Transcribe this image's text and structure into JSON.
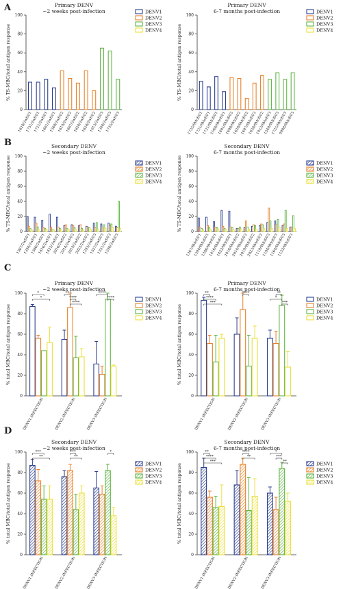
{
  "colors": {
    "DENV1": "#2b3f8f",
    "DENV2": "#e8822a",
    "DENV3": "#5fb544",
    "DENV4": "#ecdf3a"
  },
  "panel_labels": [
    "A",
    "B",
    "C",
    "D"
  ],
  "chart_data": [
    {
      "panel": "A",
      "type": "bar",
      "title": "Primary DENV\n~2 weeks post-infection",
      "ylabel": "% TS-MBC/total antigen response",
      "ylim": [
        0,
        100
      ],
      "yticks": [
        0,
        20,
        40,
        60,
        80,
        100
      ],
      "legend": [
        "DENV1",
        "DENV2",
        "DENV3",
        "DENV4"
      ],
      "categories": [
        "1628/2wDV1",
        "1731/2wDV1",
        "1721/2wDV1",
        "1601/2wDV1",
        "1568/2wDV2",
        "1619/2wDV2",
        "1607/2wDV2",
        "1620/2wDV2",
        "1628/2wDV2",
        "1013/2wDV3",
        "1340/2wDV3",
        "1735/2wDV3"
      ],
      "values": [
        29,
        29,
        32,
        23,
        41,
        33,
        28,
        41,
        20,
        65,
        62,
        32
      ],
      "bar_series": [
        "DENV1",
        "DENV1",
        "DENV1",
        "DENV1",
        "DENV2",
        "DENV2",
        "DENV2",
        "DENV2",
        "DENV2",
        "DENV3",
        "DENV3",
        "DENV3"
      ]
    },
    {
      "panel": "A",
      "type": "bar",
      "title": "Primary DENV\n6-7 months post-infection",
      "ylabel": "% TS-MBC/total antigen response",
      "ylim": [
        0,
        100
      ],
      "yticks": [
        0,
        20,
        40,
        60,
        80,
        100
      ],
      "legend": [
        "DENV1",
        "DENV2",
        "DENV3",
        "DENV4"
      ],
      "categories": [
        "1735/6MoDV1",
        "1731/6MoDV1",
        "1721/6MoDV1",
        "1568/6MoDV1",
        "1601/6MoDV2",
        "1608/6MoDV2",
        "1620/6MoDV2",
        "1607/6MoDV2",
        "1628/6MoDV2",
        "1013/6MoDV3",
        "1340/6MoDV3",
        "1735/6MoDV3",
        "9008/6MoDV3"
      ],
      "values": [
        30,
        24,
        35,
        19,
        34,
        33,
        12,
        28,
        36,
        32,
        39,
        32,
        39
      ],
      "bar_series": [
        "DENV1",
        "DENV1",
        "DENV1",
        "DENV1",
        "DENV2",
        "DENV2",
        "DENV2",
        "DENV2",
        "DENV2",
        "DENV3",
        "DENV3",
        "DENV3",
        "DENV3"
      ]
    },
    {
      "panel": "B",
      "type": "bar",
      "title": "Secondary DENV\n~2 weeks post-infection",
      "ylabel": "% TS-MBC/total antigen response",
      "ylim": [
        0,
        100
      ],
      "yticks": [
        0,
        20,
        40,
        60,
        80,
        100
      ],
      "legend": [
        "DENV1",
        "DENV2",
        "DENV3",
        "DENV4"
      ],
      "legend_pattern": "hatch",
      "categories": [
        "1367/2wDV1",
        "1394/2wDV1",
        "1386/2wDV1",
        "1416/2wDV1",
        "1422/2wDV1",
        "2016/2wDV2",
        "2014/2wDV2",
        "2019/2wDV2",
        "2023/2wDV2",
        "1293/2wDV3",
        "1327/2wDV3",
        "1351/2wDV3",
        "1290/2wDV3"
      ],
      "values": [
        [
          20,
          7,
          4,
          2
        ],
        [
          19,
          11,
          6,
          3
        ],
        [
          15,
          5,
          4,
          3
        ],
        [
          23,
          6,
          3,
          2
        ],
        [
          19,
          6,
          4,
          3
        ],
        [
          8,
          9,
          4,
          3
        ],
        [
          9,
          8,
          5,
          3
        ],
        [
          8,
          9,
          4,
          2
        ],
        [
          7,
          6,
          5,
          3
        ],
        [
          11,
          5,
          12,
          3
        ],
        [
          10,
          6,
          9,
          4
        ],
        [
          11,
          8,
          10,
          5
        ],
        [
          7,
          5,
          40,
          4
        ]
      ]
    },
    {
      "panel": "B",
      "type": "bar",
      "title": "Secondary DENV\n6-7 months post-infection",
      "ylabel": "% TS-MBC/total antigen response",
      "ylim": [
        0,
        100
      ],
      "yticks": [
        0,
        20,
        40,
        60,
        80,
        100
      ],
      "legend": [
        "DENV1",
        "DENV2",
        "DENV3",
        "DENV4"
      ],
      "legend_pattern": "hatch",
      "categories": [
        "1367/6MoDV1",
        "1394/6MoDV1",
        "1386/6MoDV1",
        "1416/6MoDV1",
        "1422/6MoDV1",
        "2016/6MoDV2",
        "2014/6MoDV2",
        "2019/6MoDV2",
        "2023/6MoDV2",
        "1119/6MoDV3",
        "1194/6MoDV3",
        "1164/6MoDV3",
        "1132/6MoDV3"
      ],
      "values": [
        [
          18,
          6,
          4,
          2
        ],
        [
          19,
          8,
          5,
          3
        ],
        [
          13,
          6,
          5,
          3
        ],
        [
          28,
          7,
          4,
          3
        ],
        [
          27,
          6,
          5,
          2
        ],
        [
          4,
          4,
          6,
          3
        ],
        [
          5,
          14,
          6,
          3
        ],
        [
          7,
          9,
          8,
          3
        ],
        [
          8,
          10,
          9,
          4
        ],
        [
          12,
          31,
          14,
          4
        ],
        [
          14,
          9,
          16,
          5
        ],
        [
          8,
          10,
          28,
          4
        ],
        [
          6,
          6,
          21,
          4
        ]
      ]
    },
    {
      "panel": "C",
      "type": "bar",
      "title": "Primary DENV\n~2 weeks post-infection",
      "ylabel": "% total MBC/total antigen response",
      "ylim": [
        0,
        100
      ],
      "yticks": [
        0,
        20,
        40,
        60,
        80,
        100
      ],
      "legend": [
        "DENV1",
        "DENV2",
        "DENV3",
        "DENV4"
      ],
      "categories": [
        "DENV1-INFECTION",
        "DENV2-INFECTION",
        "DENV3-INFECTION"
      ],
      "series": [
        {
          "name": "DENV1",
          "values": [
            87,
            55,
            31
          ],
          "err": [
            2,
            9,
            22
          ]
        },
        {
          "name": "DENV2",
          "values": [
            56,
            86,
            21
          ],
          "err": [
            3,
            14,
            8
          ]
        },
        {
          "name": "DENV3",
          "values": [
            44,
            37,
            94
          ],
          "err": [
            0,
            21,
            6
          ]
        },
        {
          "name": "DENV4",
          "values": [
            52,
            38,
            29
          ],
          "err": [
            15,
            8,
            1
          ]
        }
      ],
      "significance": [
        {
          "group": 0,
          "from": 0,
          "to": 2,
          "label": "*"
        },
        {
          "group": 0,
          "from": 0,
          "to": 3,
          "label": "*"
        },
        {
          "group": 1,
          "from": 0,
          "to": 1,
          "label": "**"
        },
        {
          "group": 1,
          "from": 1,
          "to": 2,
          "label": "****"
        },
        {
          "group": 1,
          "from": 1,
          "to": 3,
          "label": "****"
        },
        {
          "group": 2,
          "from": 0,
          "to": 2,
          "label": "****"
        },
        {
          "group": 2,
          "from": 2,
          "to": 3,
          "label": "****"
        }
      ]
    },
    {
      "panel": "C",
      "type": "bar",
      "title": "Primary DENV\n6-7 months post-infection",
      "ylabel": "% total MBC/total antigen response",
      "ylim": [
        0,
        100
      ],
      "yticks": [
        0,
        20,
        40,
        60,
        80,
        100
      ],
      "legend": [
        "DENV1",
        "DENV2",
        "DENV3",
        "DENV4"
      ],
      "categories": [
        "DENV1-INFECTION",
        "DENV2-INFECTION",
        "DENV3-INFECTION"
      ],
      "series": [
        {
          "name": "DENV1",
          "values": [
            93,
            60,
            56
          ],
          "err": [
            3,
            16,
            8
          ]
        },
        {
          "name": "DENV2",
          "values": [
            51,
            84,
            51
          ],
          "err": [
            8,
            16,
            12
          ]
        },
        {
          "name": "DENV3",
          "values": [
            33,
            29,
            88
          ],
          "err": [
            26,
            30,
            10
          ]
        },
        {
          "name": "DENV4",
          "values": [
            56,
            56,
            28
          ],
          "err": [
            4,
            12,
            15
          ]
        }
      ],
      "significance": [
        {
          "group": 0,
          "from": 0,
          "to": 1,
          "label": "**"
        },
        {
          "group": 0,
          "from": 0,
          "to": 2,
          "label": "****"
        },
        {
          "group": 0,
          "from": 0,
          "to": 3,
          "label": "***"
        },
        {
          "group": 1,
          "from": 1,
          "to": 2,
          "label": "****"
        },
        {
          "group": 2,
          "from": 1,
          "to": 2,
          "label": "**"
        },
        {
          "group": 2,
          "from": 0,
          "to": 2,
          "label": "*"
        },
        {
          "group": 2,
          "from": 2,
          "to": 3,
          "label": "***"
        }
      ]
    },
    {
      "panel": "D",
      "type": "bar",
      "title": "Secondary DENV\n~2 weeks post-infection",
      "ylabel": "% total MBC/total antigen response",
      "ylim": [
        0,
        100
      ],
      "yticks": [
        0,
        20,
        40,
        60,
        80,
        100
      ],
      "legend": [
        "DENV1",
        "DENV2",
        "DENV3",
        "DENV4"
      ],
      "legend_pattern": "hatch",
      "categories": [
        "DENV1-INFECTION",
        "DENV2-INFECTION",
        "DENV3-INFECTION"
      ],
      "series": [
        {
          "name": "DENV1",
          "values": [
            87,
            76,
            65
          ],
          "err": [
            6,
            6,
            16
          ]
        },
        {
          "name": "DENV2",
          "values": [
            72,
            82,
            59
          ],
          "err": [
            11,
            6,
            8
          ]
        },
        {
          "name": "DENV3",
          "values": [
            54,
            44,
            82
          ],
          "err": [
            13,
            15,
            6
          ]
        },
        {
          "name": "DENV4",
          "values": [
            54,
            60,
            38
          ],
          "err": [
            13,
            7,
            8
          ]
        }
      ],
      "significance": [
        {
          "group": 0,
          "from": 0,
          "to": 2,
          "label": "***"
        },
        {
          "group": 0,
          "from": 0,
          "to": 3,
          "label": "**"
        },
        {
          "group": 1,
          "from": 1,
          "to": 2,
          "label": "***"
        },
        {
          "group": 1,
          "from": 1,
          "to": 3,
          "label": "**"
        },
        {
          "group": 2,
          "from": 2,
          "to": 3,
          "label": "*"
        }
      ]
    },
    {
      "panel": "D",
      "type": "bar",
      "title": "Secondary DENV\n6-7 months post-infection",
      "ylabel": "% total MBC/total antigen response",
      "ylim": [
        0,
        100
      ],
      "yticks": [
        0,
        20,
        40,
        60,
        80,
        100
      ],
      "legend": [
        "DENV1",
        "DENV2",
        "DENV3",
        "DENV4"
      ],
      "legend_pattern": "hatch",
      "categories": [
        "DENV1-INFECTION",
        "DENV2-INFECTION",
        "DENV3-INFECTION"
      ],
      "series": [
        {
          "name": "DENV1",
          "values": [
            85,
            68,
            60
          ],
          "err": [
            9,
            14,
            6
          ]
        },
        {
          "name": "DENV2",
          "values": [
            56,
            88,
            44
          ],
          "err": [
            6,
            6,
            12
          ]
        },
        {
          "name": "DENV3",
          "values": [
            46,
            43,
            84
          ],
          "err": [
            11,
            32,
            6
          ]
        },
        {
          "name": "DENV4",
          "values": [
            47,
            57,
            52
          ],
          "err": [
            21,
            17,
            8
          ]
        }
      ],
      "significance": [
        {
          "group": 0,
          "from": 0,
          "to": 1,
          "label": "**"
        },
        {
          "group": 0,
          "from": 0,
          "to": 2,
          "label": "****"
        },
        {
          "group": 0,
          "from": 0,
          "to": 3,
          "label": "***"
        },
        {
          "group": 1,
          "from": 1,
          "to": 2,
          "label": "****"
        },
        {
          "group": 1,
          "from": 1,
          "to": 3,
          "label": "**"
        },
        {
          "group": 2,
          "from": 0,
          "to": 2,
          "label": "*"
        },
        {
          "group": 2,
          "from": 1,
          "to": 2,
          "label": "***"
        },
        {
          "group": 2,
          "from": 2,
          "to": 3,
          "label": "**"
        }
      ]
    }
  ]
}
